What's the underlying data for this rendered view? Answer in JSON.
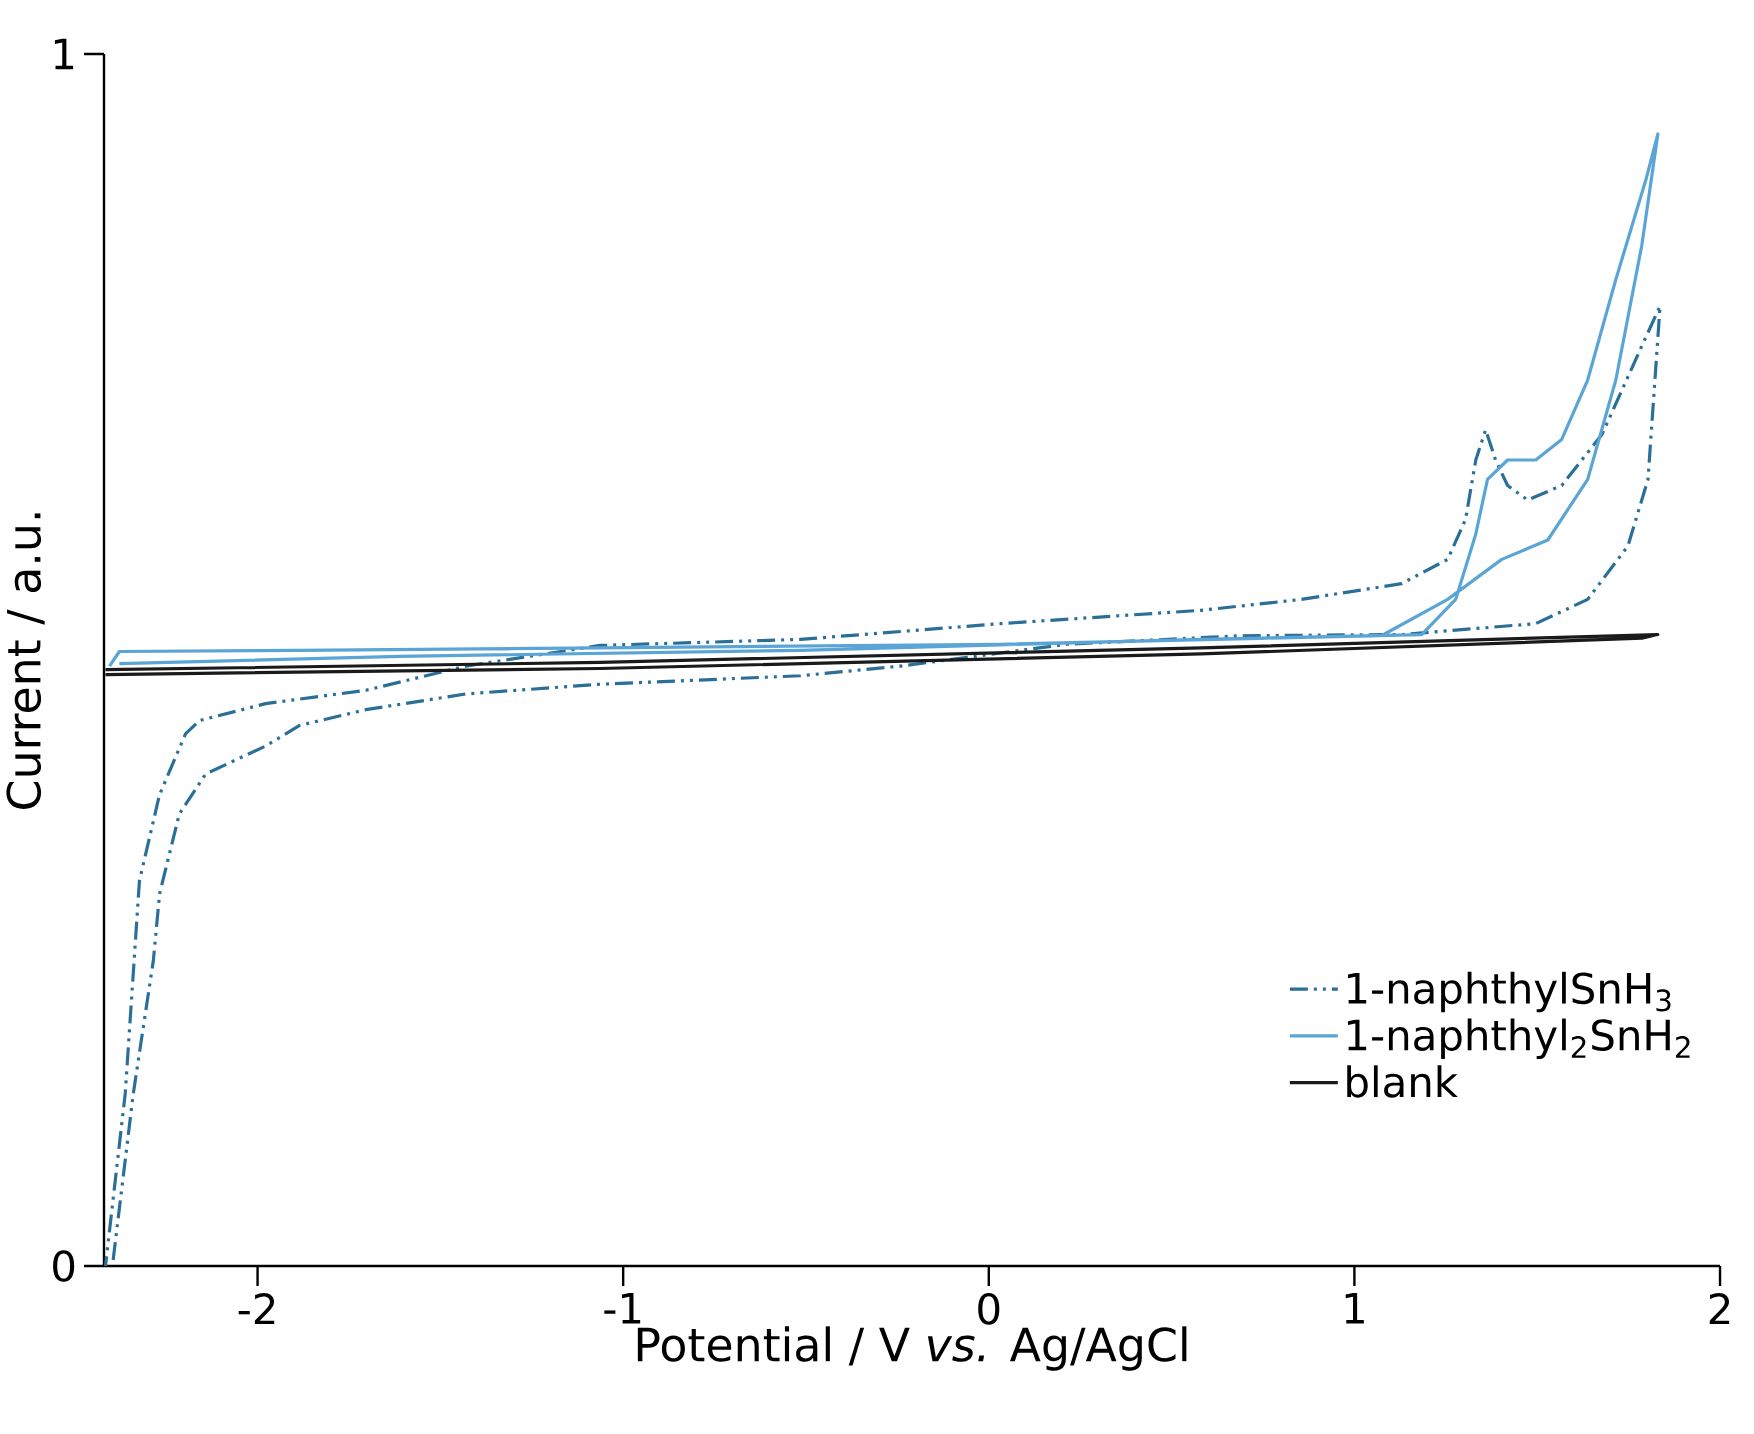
{
  "chart_data": {
    "type": "line",
    "xlabel": "Potential / V *vs.* Ag/AgCl",
    "ylabel": "Current / a.u.",
    "xlim": [
      -2.42,
      2
    ],
    "ylim": [
      0,
      1
    ],
    "xticks": [
      -2,
      -1,
      0,
      1,
      2
    ],
    "yticks": [
      0,
      1
    ],
    "grid": false,
    "legend": "bottom right",
    "marker": "none",
    "series": [
      {
        "name": "1-naphthylSnH$_{3}$",
        "color": "#2a6f97",
        "line_style": "dashed",
        "x": [
          -2.395,
          -2.34,
          -2.285,
          -2.268,
          -2.214,
          -2.142,
          -1.978,
          -1.885,
          -1.704,
          -1.43,
          -1.063,
          -0.515,
          -0.241,
          0.214,
          0.69,
          1.129,
          1.496,
          1.638,
          1.748,
          1.803,
          1.836,
          1.786,
          1.677,
          1.567,
          1.474,
          1.419,
          1.386,
          1.359,
          1.332,
          1.304,
          1.255,
          1.129,
          0.855,
          0.581,
          0.033,
          -0.515,
          -1.063,
          -1.43,
          -1.704,
          -1.978,
          -2.159,
          -2.197,
          -2.268,
          -2.323,
          -2.362,
          -2.416
        ],
        "values": [
          0.005,
          0.142,
          0.252,
          0.307,
          0.373,
          0.406,
          0.429,
          0.446,
          0.459,
          0.472,
          0.48,
          0.487,
          0.495,
          0.513,
          0.52,
          0.521,
          0.53,
          0.55,
          0.594,
          0.649,
          0.792,
          0.759,
          0.686,
          0.644,
          0.632,
          0.644,
          0.665,
          0.69,
          0.665,
          0.616,
          0.583,
          0.563,
          0.55,
          0.541,
          0.53,
          0.517,
          0.512,
          0.495,
          0.475,
          0.464,
          0.45,
          0.439,
          0.389,
          0.318,
          0.142,
          0
        ]
      },
      {
        "name": "1-naphthyl$_{2}$SnH$_{2}$",
        "color": "#5aa5d6",
        "line_style": "solid",
        "x": [
          -2.405,
          -2.378,
          -1.885,
          -1.063,
          0.033,
          1.074,
          1.255,
          1.403,
          1.529,
          1.638,
          1.715,
          1.786,
          1.83,
          1.797,
          1.715,
          1.638,
          1.567,
          1.496,
          1.419,
          1.364,
          1.332,
          1.277,
          1.184,
          0.581,
          -0.515,
          -1.611,
          -2.378
        ],
        "values": [
          0.495,
          0.507,
          0.508,
          0.51,
          0.513,
          0.52,
          0.55,
          0.583,
          0.599,
          0.649,
          0.731,
          0.842,
          0.934,
          0.896,
          0.814,
          0.731,
          0.682,
          0.665,
          0.665,
          0.649,
          0.604,
          0.55,
          0.521,
          0.517,
          0.508,
          0.503,
          0.497
        ]
      },
      {
        "name": "blank",
        "color": "#1a1a1a",
        "line_style": "solid",
        "x": [
          -2.416,
          -1.063,
          0.581,
          1.83,
          1.786,
          0.581,
          -1.063,
          -2.416
        ],
        "values": [
          0.492,
          0.498,
          0.51,
          0.521,
          0.518,
          0.505,
          0.493,
          0.488
        ]
      }
    ]
  }
}
